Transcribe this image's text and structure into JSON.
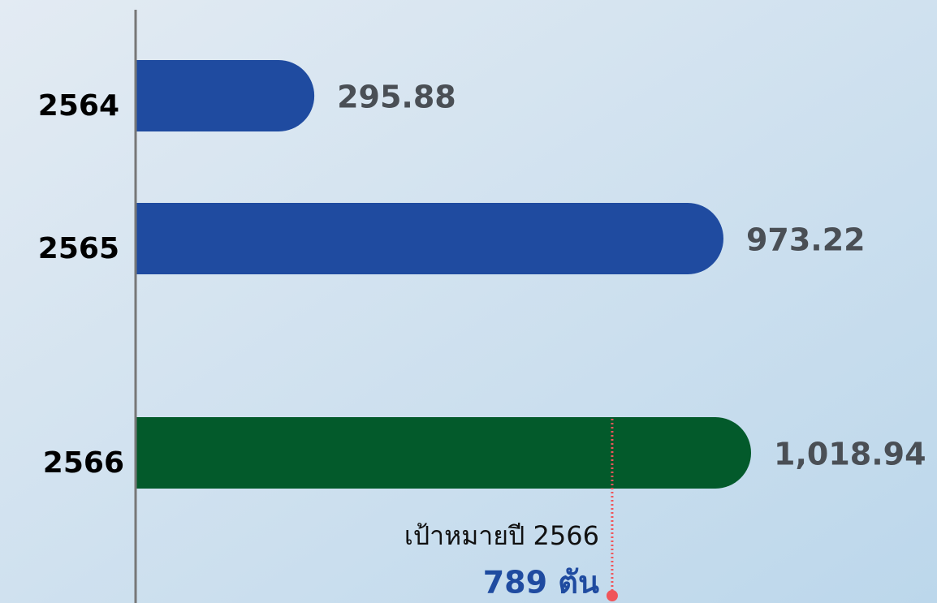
{
  "chart_data": {
    "type": "bar",
    "orientation": "horizontal",
    "categories": [
      "2564",
      "2565",
      "2566"
    ],
    "values": [
      295.88,
      973.22,
      1018.94
    ],
    "value_labels": [
      "295.88",
      "973.22",
      "1,018.94"
    ],
    "colors": [
      "#1f4ba0",
      "#1f4ba0",
      "#035a2b"
    ],
    "target": {
      "value": 789,
      "label": "เป้าหมายปี 2566",
      "value_label": "789 ตัน",
      "color": "#f0555a"
    }
  }
}
